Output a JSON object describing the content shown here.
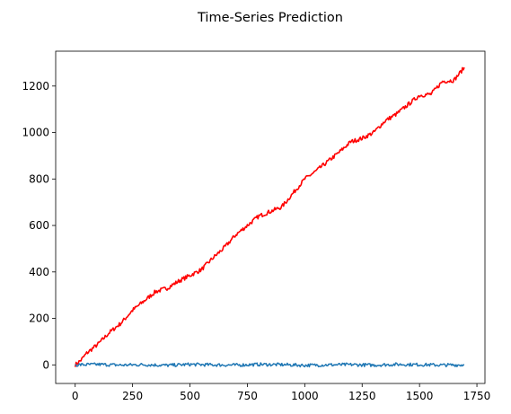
{
  "chart_data": {
    "type": "line",
    "title": "Time-Series Prediction",
    "xlabel": "",
    "ylabel": "",
    "xlim": [
      -85,
      1785
    ],
    "ylim": [
      -80,
      1350
    ],
    "xticks": [
      0,
      250,
      500,
      750,
      1000,
      1250,
      1500,
      1750
    ],
    "yticks": [
      0,
      200,
      400,
      600,
      800,
      1000,
      1200
    ],
    "grid": false,
    "legend": "none",
    "series": [
      {
        "color": "#ff0000",
        "x": [
          0,
          25,
          50,
          75,
          100,
          150,
          200,
          250,
          300,
          350,
          400,
          450,
          500,
          550,
          600,
          650,
          700,
          750,
          800,
          850,
          900,
          950,
          1000,
          1050,
          1100,
          1150,
          1200,
          1250,
          1300,
          1350,
          1400,
          1450,
          1500,
          1550,
          1600,
          1650,
          1695
        ],
        "y": [
          0,
          20,
          50,
          70,
          90,
          140,
          180,
          235,
          275,
          315,
          330,
          360,
          385,
          410,
          460,
          505,
          560,
          600,
          640,
          660,
          680,
          740,
          800,
          835,
          875,
          915,
          960,
          975,
          1000,
          1050,
          1080,
          1120,
          1160,
          1165,
          1220,
          1225,
          1280
        ]
      },
      {
        "color": "#1f77b4",
        "x": [
          0,
          100,
          200,
          300,
          400,
          500,
          600,
          700,
          800,
          900,
          1000,
          1100,
          1200,
          1300,
          1400,
          1500,
          1600,
          1695
        ],
        "y": [
          0,
          2,
          -1,
          1,
          -2,
          2,
          0,
          -1,
          2,
          1,
          -2,
          0,
          1,
          -1,
          2,
          1,
          -1,
          0
        ]
      }
    ]
  }
}
